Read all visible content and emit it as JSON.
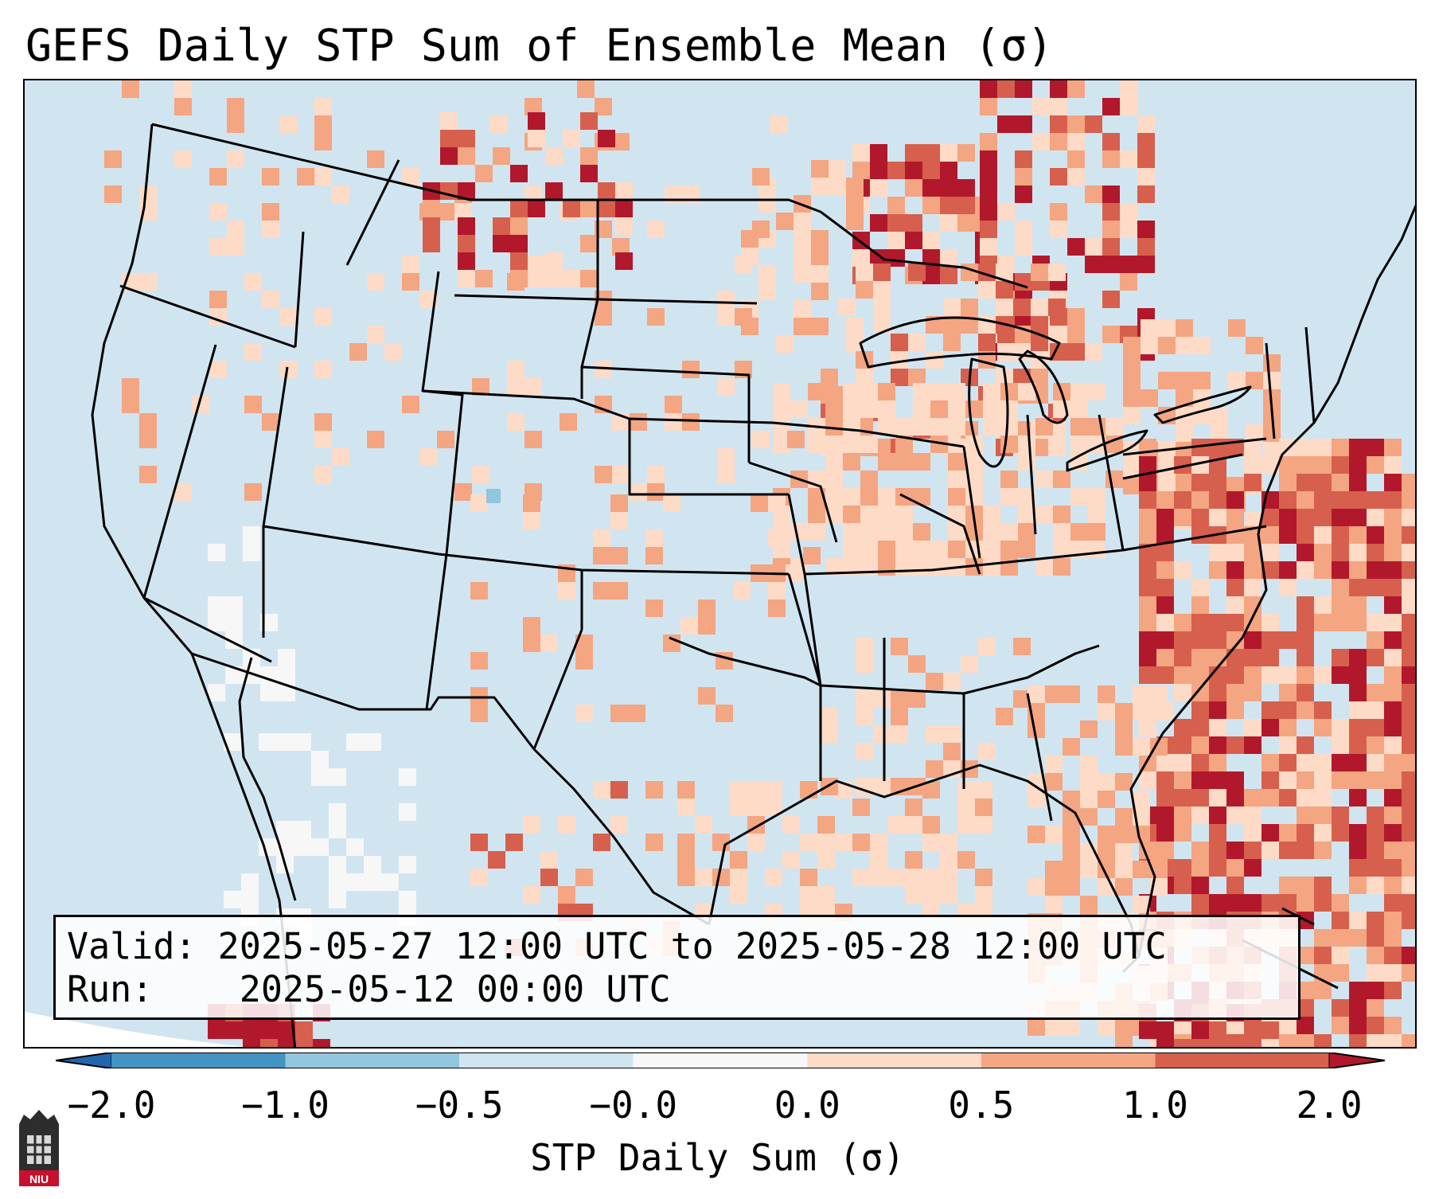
{
  "title": "GEFS Daily STP Sum of Ensemble Mean (σ)",
  "info": {
    "valid_label": "Valid:",
    "valid_value": "2025-05-27 12:00 UTC to 2025-05-28 12:00 UTC",
    "run_label": "Run:",
    "run_value": "2025-05-12 00:00 UTC"
  },
  "colorbar": {
    "label": "STP Daily Sum (σ)",
    "ticks": [
      "−2.0",
      "−1.0",
      "−0.5",
      "−0.0",
      "0.0",
      "0.5",
      "1.0",
      "2.0"
    ],
    "bins": [
      {
        "range": "< −2.0",
        "color": "#2166ac"
      },
      {
        "range": "−2.0 to −1.0",
        "color": "#4393c3"
      },
      {
        "range": "−1.0 to −0.5",
        "color": "#92c5de"
      },
      {
        "range": "−0.5 to −0.0",
        "color": "#d1e5f0"
      },
      {
        "range": "−0.0 to 0.0",
        "color": "#f7f7f7"
      },
      {
        "range": "0.0 to 0.5",
        "color": "#fddbc7"
      },
      {
        "range": "0.5 to 1.0",
        "color": "#f4a582"
      },
      {
        "range": "1.0 to 2.0",
        "color": "#d6604d"
      },
      {
        "range": "> 2.0",
        "color": "#b2182b"
      }
    ]
  },
  "map": {
    "domain": "Contiguous United States",
    "projection": "Lambert Conformal",
    "background_color": "#d1e5f0",
    "borders": [
      "coastlines",
      "country borders",
      "state borders"
    ]
  },
  "logo": {
    "text": "NIU",
    "name": "Northern Illinois University"
  }
}
